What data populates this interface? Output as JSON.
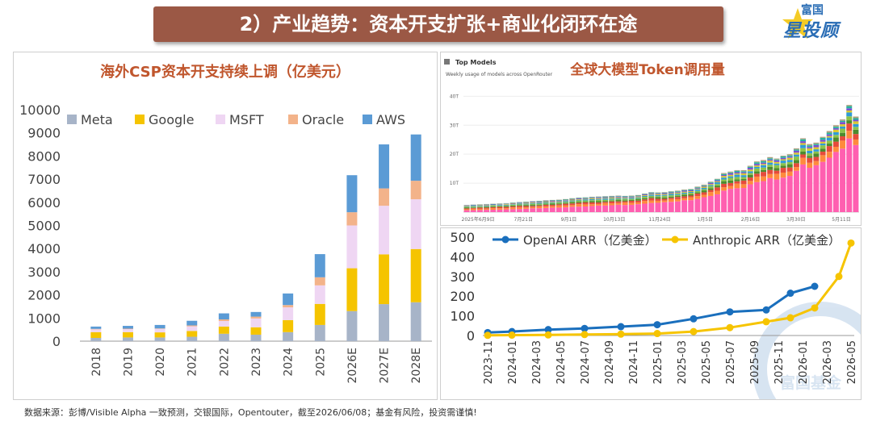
{
  "banner": {
    "title": "2）产业趋势：资本开支扩张+商业化闭环在途"
  },
  "logo": {
    "top": "富国",
    "main": "星投顾"
  },
  "watermark": {
    "text": "富国基金"
  },
  "footer": {
    "source": "数据来源：彭博/Visible Alpha 一致预测，交银国际，Opentouter，截至2026/06/08；基金有风险，投资需谨慎!"
  },
  "chart_data": [
    {
      "id": "capex",
      "type": "bar",
      "stacked": true,
      "title": "海外CSP资本开支持续上调（亿美元）",
      "categories": [
        "2018",
        "2019",
        "2020",
        "2021",
        "2022",
        "2023",
        "2024",
        "2025",
        "2026E",
        "2027E",
        "2028E"
      ],
      "series": [
        {
          "name": "Meta",
          "color": "#a7b4c8",
          "values": [
            140,
            160,
            160,
            190,
            320,
            280,
            390,
            700,
            1300,
            1600,
            1680
          ]
        },
        {
          "name": "Google",
          "color": "#f5c400",
          "values": [
            250,
            230,
            220,
            250,
            310,
            320,
            520,
            910,
            1850,
            2150,
            2300
          ]
        },
        {
          "name": "MSFT",
          "color": "#efd6f3",
          "values": [
            120,
            130,
            150,
            200,
            240,
            380,
            550,
            800,
            1850,
            2100,
            2150
          ]
        },
        {
          "name": "Oracle",
          "color": "#f3b38a",
          "values": [
            20,
            20,
            20,
            40,
            70,
            80,
            100,
            350,
            570,
            750,
            800
          ]
        },
        {
          "name": "AWS",
          "color": "#5b9bd5",
          "values": [
            100,
            120,
            150,
            200,
            260,
            200,
            500,
            1000,
            1600,
            1900,
            2000
          ]
        }
      ],
      "ylim": [
        0,
        10000
      ],
      "yticks": [
        0,
        1000,
        2000,
        3000,
        4000,
        5000,
        6000,
        7000,
        8000,
        9000,
        10000
      ],
      "legend": "top"
    },
    {
      "id": "tokens",
      "type": "bar",
      "stacked": true,
      "title": "全球大模型Token调用量",
      "header": "Top Models",
      "subheader": "Weekly usage of models across OpenRouter",
      "yticks": [
        "10T",
        "20T",
        "30T",
        "40T"
      ],
      "ylim": [
        0,
        44
      ],
      "xticks": [
        "2025年6月9日",
        "7月21日",
        "9月1日",
        "10月13日",
        "11月24日",
        "1月5日",
        "2月16日",
        "3月30日",
        "5月11日"
      ],
      "weekly_totals": [
        2.5,
        2.6,
        2.7,
        2.8,
        2.9,
        3.0,
        3.1,
        3.3,
        3.5,
        3.6,
        3.8,
        3.9,
        4.1,
        4.2,
        4.3,
        4.5,
        4.8,
        5.0,
        5.1,
        5.3,
        5.4,
        5.5,
        5.6,
        5.7,
        5.6,
        5.7,
        5.9,
        6.4,
        6.9,
        6.8,
        6.9,
        7.2,
        7.4,
        7.8,
        8.0,
        8.8,
        9.5,
        10.5,
        11.5,
        13.5,
        14.0,
        14.5,
        14.5,
        16.0,
        17.5,
        18.0,
        19.0,
        18.5,
        19.5,
        20.0,
        22.0,
        25.5,
        23.5,
        24.0,
        26.0,
        28.0,
        30.0,
        32.0,
        37.0,
        33.0
      ],
      "segment_colors": [
        "#ff5fb0",
        "#ff8a3d",
        "#e64b3c",
        "#4d8a2f",
        "#8bc34a",
        "#2f9bd8",
        "#d9c830",
        "#7c4fd1",
        "#26b5a0",
        "#b0a080"
      ]
    },
    {
      "id": "arr",
      "type": "line",
      "categories": [
        "2023-11",
        "2024-01",
        "2024-03",
        "2024-05",
        "2024-07",
        "2024-09",
        "2024-11",
        "2025-01",
        "2025-03",
        "2025-05",
        "2025-07",
        "2025-09",
        "2025-11",
        "2026-01",
        "2026-03",
        "2026-05"
      ],
      "series": [
        {
          "name": "OpenAI ARR（亿美金）",
          "color": "#1a6fbd",
          "x": [
            "2023-11",
            "2024-01",
            "2024-04",
            "2024-07",
            "2024-10",
            "2025-01",
            "2025-04",
            "2025-07",
            "2025-10",
            "2025-12",
            "2026-02"
          ],
          "values": [
            15,
            20,
            30,
            36,
            45,
            55,
            85,
            120,
            130,
            215,
            250
          ]
        },
        {
          "name": "Anthropic ARR（亿美金）",
          "color": "#f6c400",
          "x": [
            "2023-11",
            "2024-01",
            "2024-04",
            "2024-07",
            "2024-10",
            "2025-01",
            "2025-04",
            "2025-07",
            "2025-10",
            "2025-12",
            "2026-02",
            "2026-04",
            "2026-05"
          ],
          "values": [
            1,
            2,
            3,
            5,
            7,
            10,
            20,
            40,
            70,
            90,
            140,
            300,
            470
          ]
        }
      ],
      "ylim": [
        0,
        500
      ],
      "yticks": [
        0,
        100,
        200,
        300,
        400,
        500
      ],
      "legend": "top"
    }
  ]
}
